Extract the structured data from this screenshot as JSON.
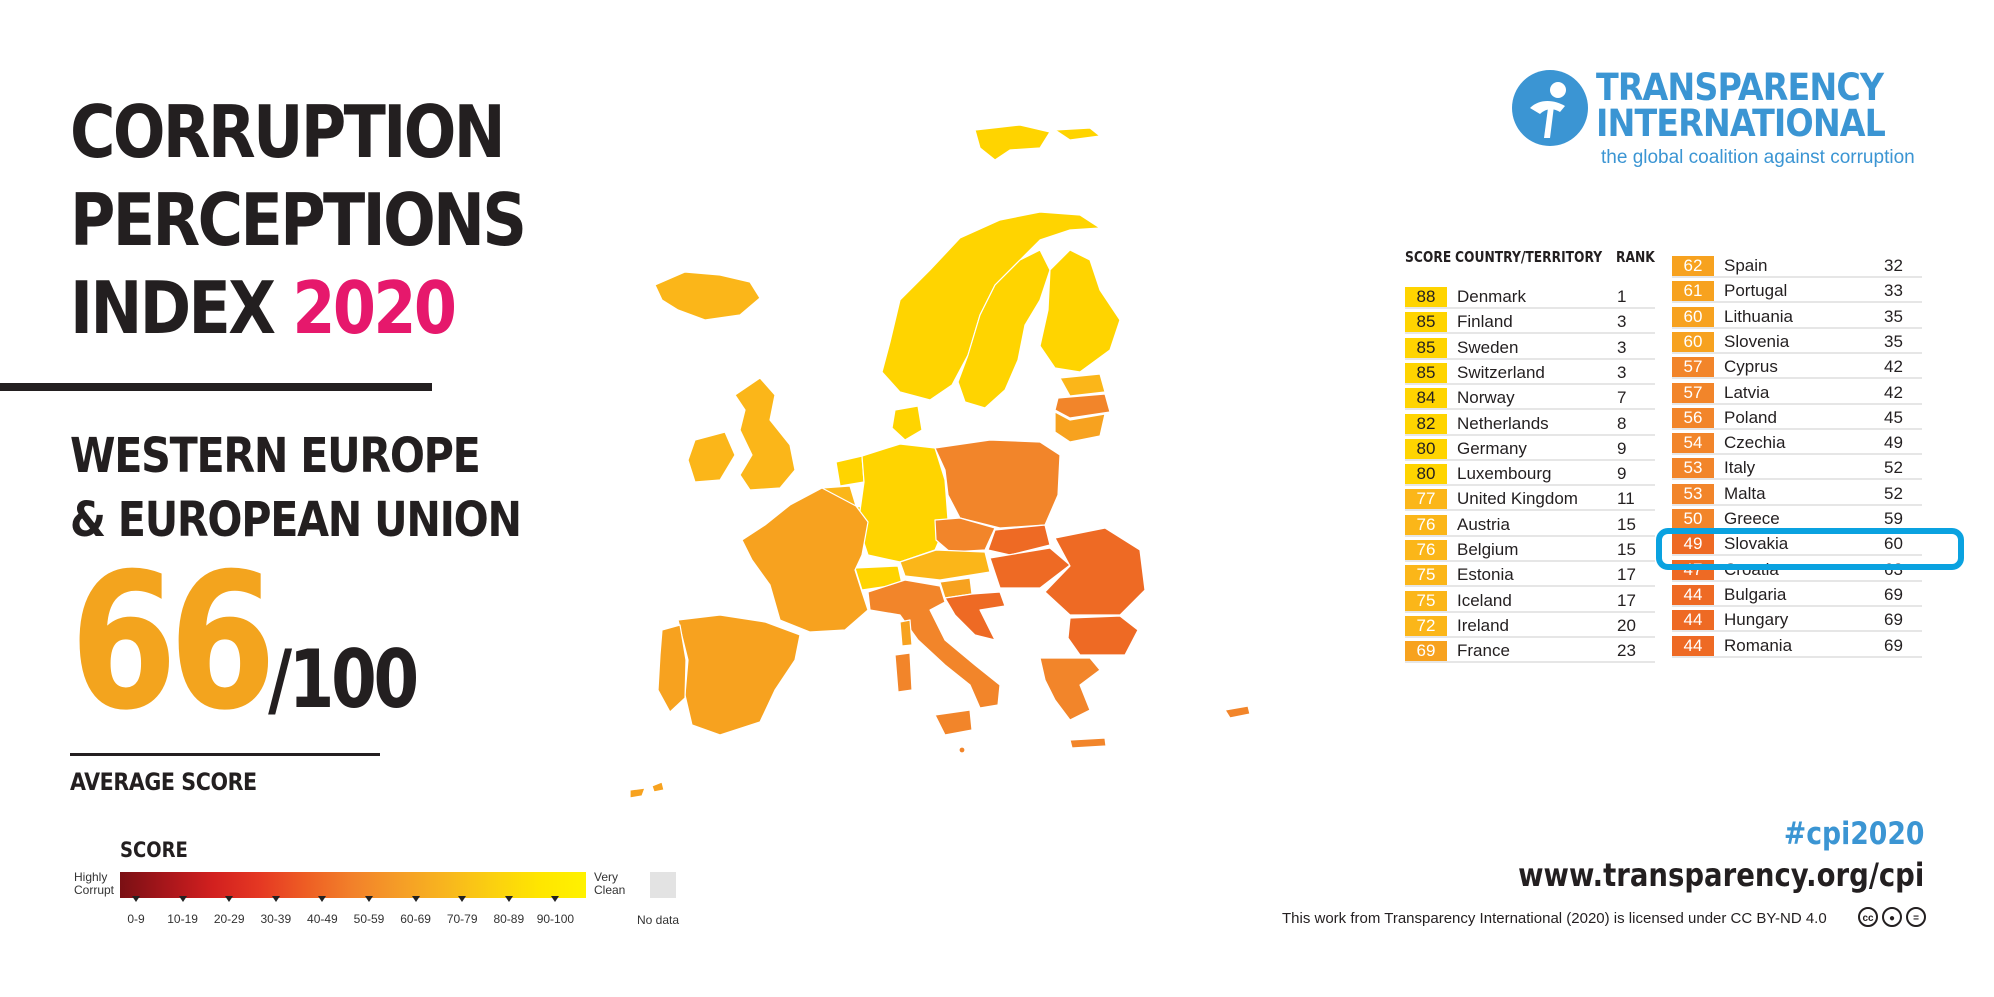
{
  "title": {
    "line1": "CORRUPTION",
    "line2": "PERCEPTIONS",
    "line3_prefix": "INDEX ",
    "year": "2020"
  },
  "region": {
    "line1": "WESTERN EUROPE",
    "line2": "& EUROPEAN UNION"
  },
  "average": {
    "score": "66",
    "out_of": "/100",
    "label": "AVERAGE SCORE"
  },
  "legend": {
    "title": "SCORE",
    "low_label": [
      "Highly",
      "Corrupt"
    ],
    "high_label": [
      "Very",
      "Clean"
    ],
    "no_data_label": "No data",
    "ranges": [
      "0-9",
      "10-19",
      "20-29",
      "30-39",
      "40-49",
      "50-59",
      "60-69",
      "70-79",
      "80-89",
      "90-100"
    ]
  },
  "colors": {
    "accent_year": "#e6186c",
    "average_score": "#f3a41e",
    "brand_blue": "#3b95d3",
    "highlight": "#0aa2e0",
    "score_80_89": "#ffd400",
    "score_70_79": "#fbb619",
    "score_60_69": "#f7a21f",
    "score_50_59": "#f2852a",
    "score_40_49": "#ee6a24"
  },
  "logo": {
    "icon": "transparency-figure-icon",
    "line1": "TRANSPARENCY",
    "line2": "INTERNATIONAL",
    "tagline": "the global coalition against corruption"
  },
  "table": {
    "headers": {
      "score": "SCORE",
      "country": "COUNTRY/TERRITORY",
      "rank": "RANK"
    },
    "left": [
      {
        "score": "88",
        "country": "Denmark",
        "rank": "1"
      },
      {
        "score": "85",
        "country": "Finland",
        "rank": "3"
      },
      {
        "score": "85",
        "country": "Sweden",
        "rank": "3"
      },
      {
        "score": "85",
        "country": "Switzerland",
        "rank": "3"
      },
      {
        "score": "84",
        "country": "Norway",
        "rank": "7"
      },
      {
        "score": "82",
        "country": "Netherlands",
        "rank": "8"
      },
      {
        "score": "80",
        "country": "Germany",
        "rank": "9"
      },
      {
        "score": "80",
        "country": "Luxembourg",
        "rank": "9"
      },
      {
        "score": "77",
        "country": "United Kingdom",
        "rank": "11"
      },
      {
        "score": "76",
        "country": "Austria",
        "rank": "15"
      },
      {
        "score": "76",
        "country": "Belgium",
        "rank": "15"
      },
      {
        "score": "75",
        "country": "Estonia",
        "rank": "17"
      },
      {
        "score": "75",
        "country": "Iceland",
        "rank": "17"
      },
      {
        "score": "72",
        "country": "Ireland",
        "rank": "20"
      },
      {
        "score": "69",
        "country": "France",
        "rank": "23"
      }
    ],
    "right": [
      {
        "score": "62",
        "country": "Spain",
        "rank": "32"
      },
      {
        "score": "61",
        "country": "Portugal",
        "rank": "33"
      },
      {
        "score": "60",
        "country": "Lithuania",
        "rank": "35"
      },
      {
        "score": "60",
        "country": "Slovenia",
        "rank": "35"
      },
      {
        "score": "57",
        "country": "Cyprus",
        "rank": "42"
      },
      {
        "score": "57",
        "country": "Latvia",
        "rank": "42"
      },
      {
        "score": "56",
        "country": "Poland",
        "rank": "45"
      },
      {
        "score": "54",
        "country": "Czechia",
        "rank": "49"
      },
      {
        "score": "53",
        "country": "Italy",
        "rank": "52"
      },
      {
        "score": "53",
        "country": "Malta",
        "rank": "52"
      },
      {
        "score": "50",
        "country": "Greece",
        "rank": "59"
      },
      {
        "score": "49",
        "country": "Slovakia",
        "rank": "60"
      },
      {
        "score": "47",
        "country": "Croatia",
        "rank": "63"
      },
      {
        "score": "44",
        "country": "Bulgaria",
        "rank": "69"
      },
      {
        "score": "44",
        "country": "Hungary",
        "rank": "69"
      },
      {
        "score": "44",
        "country": "Romania",
        "rank": "69"
      }
    ],
    "highlighted_country": "Slovakia"
  },
  "footer": {
    "hashtag": "#cpi2020",
    "url": "www.transparency.org/cpi",
    "license": "This work from Transparency International (2020) is licensed under CC BY-ND 4.0",
    "license_icons": [
      "cc-icon",
      "by-icon",
      "nd-icon"
    ]
  }
}
